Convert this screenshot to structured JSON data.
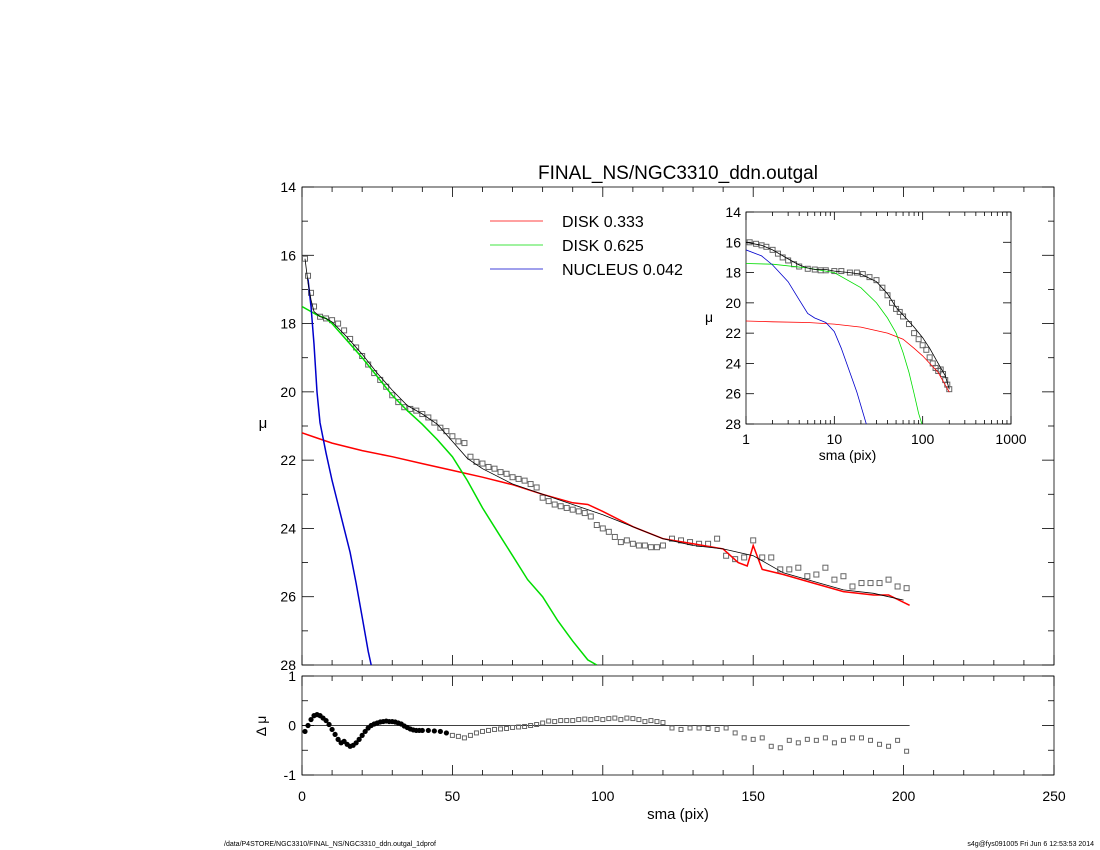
{
  "chart_data": [
    {
      "type": "line",
      "panel": "main",
      "title": "FINAL_NS/NGC3310_ddn.outgal",
      "xlabel": "",
      "ylabel": "μ",
      "xlim": [
        0,
        250
      ],
      "ylim": [
        14,
        28
      ],
      "y_inverted": true,
      "xticks": [
        "0",
        "50",
        "100",
        "150",
        "200",
        "250"
      ],
      "yticks": [
        "14",
        "16",
        "18",
        "20",
        "22",
        "24",
        "26",
        "28"
      ],
      "legend_position": "top-center",
      "series": [
        {
          "name": "DISK  0.333",
          "color": "#ff0000",
          "x": [
            0,
            5,
            10,
            20,
            30,
            40,
            50,
            60,
            70,
            80,
            90,
            95,
            100,
            110,
            120,
            130,
            140,
            145,
            148,
            150,
            153,
            160,
            170,
            180,
            190,
            195,
            202
          ],
          "y": [
            21.2,
            21.35,
            21.5,
            21.72,
            21.9,
            22.1,
            22.3,
            22.5,
            22.72,
            23.0,
            23.25,
            23.3,
            23.5,
            23.95,
            24.3,
            24.45,
            24.6,
            25.0,
            25.1,
            24.5,
            25.2,
            25.35,
            25.6,
            25.85,
            25.95,
            25.95,
            26.25
          ]
        },
        {
          "name": "DISK  0.625",
          "color": "#00dd00",
          "x": [
            0,
            2,
            5,
            8,
            10,
            15,
            20,
            25,
            30,
            35,
            40,
            45,
            50,
            55,
            60,
            65,
            70,
            75,
            80,
            85,
            90,
            95,
            98
          ],
          "y": [
            17.5,
            17.6,
            17.75,
            17.85,
            18.0,
            18.5,
            19.0,
            19.55,
            20.1,
            20.55,
            20.95,
            21.4,
            21.9,
            22.6,
            23.4,
            24.1,
            24.8,
            25.5,
            26.0,
            26.7,
            27.3,
            27.85,
            28.0
          ]
        },
        {
          "name": "NUCLEUS  0.042",
          "color": "#0000cc",
          "x": [
            2,
            3,
            4,
            5,
            6,
            8,
            10,
            12,
            14,
            16,
            18,
            20,
            22,
            23
          ],
          "y": [
            16.7,
            17.5,
            18.6,
            20.0,
            20.9,
            21.8,
            22.6,
            23.3,
            24.0,
            24.7,
            25.6,
            26.6,
            27.6,
            28.0
          ]
        },
        {
          "name": "",
          "color": "#000000",
          "x": [
            1,
            2,
            3,
            4,
            6,
            8,
            10,
            15,
            20,
            25,
            30,
            35,
            40,
            45,
            50,
            55,
            60,
            70,
            80,
            90,
            100,
            110,
            120,
            130,
            140,
            150,
            160,
            170,
            180,
            190,
            200
          ],
          "y": [
            16.1,
            16.8,
            17.3,
            17.65,
            17.8,
            17.85,
            17.95,
            18.4,
            18.9,
            19.45,
            19.95,
            20.4,
            20.65,
            20.95,
            21.45,
            21.95,
            22.25,
            22.7,
            23.0,
            23.3,
            23.6,
            23.95,
            24.3,
            24.5,
            24.6,
            24.8,
            25.3,
            25.55,
            25.8,
            25.9,
            26.1
          ]
        }
      ],
      "points": {
        "x": [
          1,
          2,
          3,
          4,
          6,
          8,
          10,
          12,
          14,
          16,
          18,
          20,
          22,
          24,
          26,
          28,
          30,
          32,
          34,
          36,
          38,
          40,
          42,
          44,
          46,
          48,
          50,
          52,
          54,
          56,
          58,
          60,
          62,
          64,
          66,
          68,
          70,
          72,
          74,
          76,
          78,
          80,
          82,
          84,
          86,
          88,
          90,
          92,
          94,
          96,
          98,
          100,
          102,
          104,
          106,
          108,
          110,
          112,
          114,
          116,
          118,
          120,
          123,
          126,
          129,
          132,
          135,
          138,
          141,
          144,
          147,
          150,
          153,
          156,
          159,
          162,
          165,
          168,
          171,
          174,
          177,
          180,
          183,
          186,
          189,
          192,
          195,
          198,
          201
        ],
        "y": [
          16.1,
          16.6,
          17.1,
          17.5,
          17.8,
          17.85,
          17.9,
          18.0,
          18.2,
          18.45,
          18.7,
          18.95,
          19.2,
          19.45,
          19.65,
          19.85,
          20.1,
          20.3,
          20.45,
          20.5,
          20.55,
          20.65,
          20.75,
          20.9,
          21.05,
          21.15,
          21.3,
          21.45,
          21.5,
          21.9,
          22.05,
          22.1,
          22.2,
          22.25,
          22.35,
          22.4,
          22.5,
          22.55,
          22.6,
          22.7,
          22.8,
          23.1,
          23.2,
          23.3,
          23.35,
          23.4,
          23.45,
          23.5,
          23.55,
          23.65,
          23.9,
          24.0,
          24.1,
          24.25,
          24.4,
          24.35,
          24.45,
          24.5,
          24.5,
          24.55,
          24.55,
          24.5,
          24.3,
          24.35,
          24.4,
          24.45,
          24.45,
          24.3,
          24.8,
          24.9,
          24.85,
          24.35,
          24.85,
          24.85,
          25.2,
          25.2,
          25.15,
          25.4,
          25.35,
          25.15,
          25.5,
          25.4,
          25.7,
          25.6,
          25.6,
          25.6,
          25.5,
          25.7,
          25.75
        ]
      }
    },
    {
      "type": "line",
      "panel": "inset",
      "title": "",
      "xlabel": "sma (pix)",
      "ylabel": "μ",
      "xscale": "log",
      "xlim": [
        1,
        1000
      ],
      "ylim": [
        14,
        28
      ],
      "y_inverted": true,
      "xticks": [
        "1",
        "10",
        "100",
        "1000"
      ],
      "yticks": [
        "14",
        "16",
        "18",
        "20",
        "22",
        "24",
        "26",
        "28"
      ],
      "series": [
        {
          "name": "",
          "color": "#ff0000",
          "x": [
            1,
            2,
            5,
            10,
            20,
            40,
            60,
            80,
            100,
            150,
            200
          ],
          "y": [
            21.2,
            21.25,
            21.3,
            21.4,
            21.6,
            22.0,
            22.4,
            23.0,
            23.5,
            24.6,
            25.9
          ]
        },
        {
          "name": "",
          "color": "#00dd00",
          "x": [
            1,
            2,
            5,
            10,
            20,
            30,
            40,
            50,
            60,
            70,
            80,
            90,
            98
          ],
          "y": [
            17.4,
            17.45,
            17.7,
            18.0,
            19.0,
            20.0,
            21.0,
            22.0,
            23.3,
            24.6,
            26.0,
            27.3,
            28.0
          ]
        },
        {
          "name": "",
          "color": "#0000cc",
          "x": [
            1,
            1.5,
            2,
            3,
            4,
            5,
            6,
            8,
            10,
            12,
            15,
            18,
            20,
            23
          ],
          "y": [
            16.5,
            16.9,
            17.5,
            18.6,
            19.8,
            20.7,
            21.0,
            21.3,
            21.9,
            23.0,
            24.6,
            25.9,
            26.8,
            28.0
          ]
        },
        {
          "name": "",
          "color": "#000000",
          "x": [
            1,
            1.5,
            2,
            3,
            4,
            5,
            6,
            8,
            10,
            15,
            20,
            30,
            40,
            50,
            60,
            80,
            100,
            120,
            150,
            180,
            200
          ],
          "y": [
            16.0,
            16.2,
            16.5,
            17.1,
            17.5,
            17.7,
            17.8,
            17.8,
            17.9,
            18.0,
            18.1,
            18.6,
            19.4,
            20.3,
            20.8,
            21.6,
            22.3,
            23.0,
            24.0,
            24.8,
            25.7
          ]
        }
      ],
      "points": {
        "x": [
          1.1,
          1.3,
          1.5,
          1.7,
          2,
          2.3,
          2.6,
          3,
          3.5,
          4,
          5,
          6,
          7,
          8,
          10,
          12,
          15,
          18,
          21,
          25,
          30,
          35,
          40,
          45,
          50,
          55,
          60,
          70,
          80,
          90,
          100,
          110,
          120,
          130,
          140,
          150,
          160,
          170,
          180,
          190,
          200
        ],
        "y": [
          16.0,
          16.1,
          16.2,
          16.3,
          16.5,
          16.75,
          17.0,
          17.2,
          17.45,
          17.6,
          17.75,
          17.8,
          17.85,
          17.85,
          17.9,
          17.9,
          18.0,
          18.0,
          18.1,
          18.3,
          18.5,
          19.0,
          19.5,
          20.0,
          20.4,
          20.6,
          20.9,
          21.4,
          22.0,
          22.4,
          22.8,
          23.1,
          23.6,
          24.0,
          24.3,
          24.5,
          24.4,
          24.7,
          25.1,
          25.4,
          25.7
        ]
      }
    },
    {
      "type": "scatter",
      "panel": "residual",
      "title": "",
      "xlabel": "sma (pix)",
      "ylabel": "Δ μ",
      "xlim": [
        0,
        250
      ],
      "ylim": [
        -1,
        1
      ],
      "xticks": [
        "0",
        "50",
        "100",
        "150",
        "200",
        "250"
      ],
      "yticks": [
        "-1",
        "0",
        "1"
      ],
      "zero_line": {
        "x": [
          0,
          202
        ],
        "y": 0
      },
      "points": {
        "x": [
          1,
          2,
          3,
          4,
          5,
          6,
          7,
          8,
          9,
          10,
          11,
          12,
          13,
          14,
          15,
          16,
          17,
          18,
          19,
          20,
          21,
          22,
          23,
          24,
          25,
          26,
          27,
          28,
          29,
          30,
          31,
          32,
          33,
          34,
          35,
          36,
          37,
          38,
          39,
          40,
          42,
          44,
          46,
          48,
          50,
          52,
          54,
          56,
          58,
          60,
          62,
          64,
          66,
          68,
          70,
          72,
          74,
          76,
          78,
          80,
          82,
          84,
          86,
          88,
          90,
          92,
          94,
          96,
          98,
          100,
          102,
          104,
          106,
          108,
          110,
          112,
          114,
          116,
          118,
          120,
          123,
          126,
          129,
          132,
          135,
          138,
          141,
          144,
          147,
          150,
          153,
          156,
          159,
          162,
          165,
          168,
          171,
          174,
          177,
          180,
          183,
          186,
          189,
          192,
          195,
          198,
          201
        ],
        "y": [
          -0.12,
          0.0,
          0.12,
          0.2,
          0.22,
          0.2,
          0.15,
          0.1,
          0.02,
          -0.08,
          -0.18,
          -0.28,
          -0.35,
          -0.32,
          -0.38,
          -0.42,
          -0.4,
          -0.35,
          -0.28,
          -0.2,
          -0.12,
          -0.05,
          0.0,
          0.03,
          0.05,
          0.07,
          0.08,
          0.09,
          0.08,
          0.08,
          0.07,
          0.05,
          0.03,
          -0.01,
          -0.04,
          -0.07,
          -0.09,
          -0.1,
          -0.1,
          -0.1,
          -0.1,
          -0.11,
          -0.12,
          -0.15,
          -0.2,
          -0.22,
          -0.25,
          -0.2,
          -0.15,
          -0.12,
          -0.1,
          -0.08,
          -0.07,
          -0.06,
          -0.04,
          -0.03,
          -0.02,
          0.0,
          0.02,
          0.05,
          0.09,
          0.08,
          0.1,
          0.1,
          0.1,
          0.12,
          0.13,
          0.12,
          0.14,
          0.12,
          0.14,
          0.15,
          0.12,
          0.15,
          0.14,
          0.12,
          0.08,
          0.1,
          0.08,
          0.06,
          -0.05,
          -0.08,
          -0.05,
          -0.05,
          -0.06,
          -0.08,
          -0.05,
          -0.15,
          -0.25,
          -0.28,
          -0.25,
          -0.42,
          -0.45,
          -0.3,
          -0.35,
          -0.28,
          -0.3,
          -0.25,
          -0.35,
          -0.3,
          -0.25,
          -0.25,
          -0.3,
          -0.38,
          -0.42,
          -0.3,
          -0.52
        ]
      }
    }
  ],
  "footer": {
    "path": "/data/P4STORE/NGC3310/FINAL_NS/NGC3310_ddn.outgal_1dprof",
    "stamp": "s4g@fys091005  Fri Jun  6 12:53:53 2014"
  }
}
